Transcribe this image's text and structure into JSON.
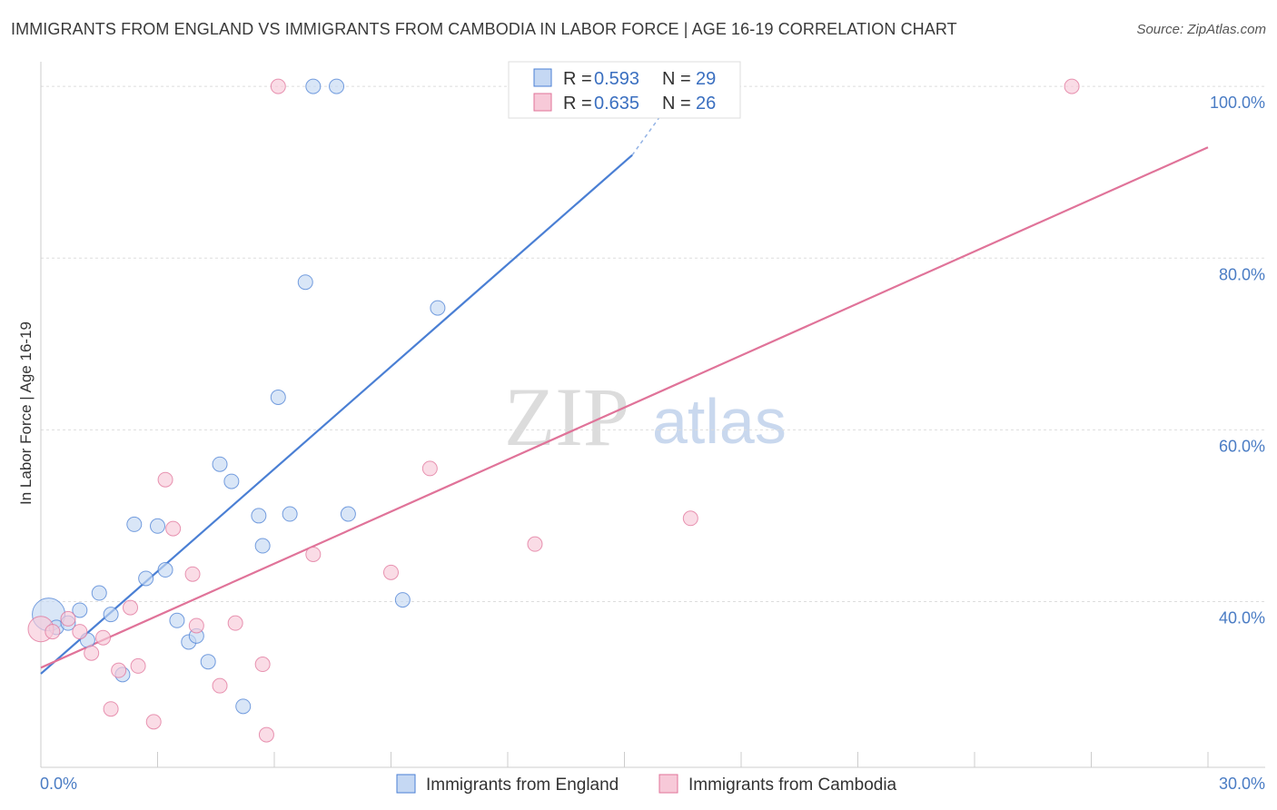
{
  "header": {
    "title": "IMMIGRANTS FROM ENGLAND VS IMMIGRANTS FROM CAMBODIA IN LABOR FORCE | AGE 16-19 CORRELATION CHART",
    "source": "Source: ZipAtlas.com"
  },
  "watermark": {
    "part1": "ZIP",
    "part2": "atlas"
  },
  "colors": {
    "england": "#4a7fd4",
    "england_fill": "#c5d8f3",
    "cambodia": "#e07399",
    "cambodia_fill": "#f7c9d8",
    "tick_text": "#4a7cc4",
    "grid": "#dddddd"
  },
  "chart_data": {
    "type": "scatter",
    "title": "IMMIGRANTS FROM ENGLAND VS IMMIGRANTS FROM CAMBODIA IN LABOR FORCE | AGE 16-19 CORRELATION CHART",
    "xlabel": "",
    "ylabel": "In Labor Force | Age 16-19",
    "xlim": [
      0,
      30
    ],
    "ylim": [
      20.7,
      101.6
    ],
    "x_tick_labels": [
      "0.0%",
      "30.0%"
    ],
    "y_ticks": [
      40,
      60,
      80,
      100
    ],
    "y_tick_labels": [
      "40.0%",
      "60.0%",
      "80.0%",
      "100.0%"
    ],
    "legend": {
      "position": "top-center",
      "entries": [
        {
          "r_label": "R =",
          "r_value": "0.593",
          "n_label": "N =",
          "n_value": "29"
        },
        {
          "r_label": "R =",
          "r_value": "0.635",
          "n_label": "N =",
          "n_value": "26"
        }
      ]
    },
    "series": [
      {
        "name": "Immigrants from England",
        "color": "#4a7fd4",
        "points": [
          [
            0.2,
            38.5
          ],
          [
            0.4,
            37.0
          ],
          [
            0.7,
            37.5
          ],
          [
            1.0,
            39.0
          ],
          [
            1.2,
            35.5
          ],
          [
            1.5,
            41.0
          ],
          [
            1.8,
            38.5
          ],
          [
            2.1,
            31.5
          ],
          [
            2.4,
            49.0
          ],
          [
            2.7,
            42.7
          ],
          [
            3.0,
            48.8
          ],
          [
            3.2,
            43.7
          ],
          [
            3.5,
            37.8
          ],
          [
            3.8,
            35.3
          ],
          [
            4.0,
            36.0
          ],
          [
            4.3,
            33.0
          ],
          [
            4.6,
            56.0
          ],
          [
            4.9,
            54.0
          ],
          [
            5.2,
            27.8
          ],
          [
            5.6,
            50.0
          ],
          [
            5.7,
            46.5
          ],
          [
            6.1,
            63.8
          ],
          [
            6.4,
            50.2
          ],
          [
            6.8,
            77.2
          ],
          [
            7.0,
            100.0
          ],
          [
            7.6,
            100.0
          ],
          [
            7.9,
            50.2
          ],
          [
            9.3,
            40.2
          ],
          [
            10.2,
            74.2
          ]
        ],
        "trend": {
          "x": [
            0.0,
            15.2
          ],
          "y": [
            31.6,
            92.0
          ],
          "dashed_to": [
            15.9,
            96.4
          ]
        }
      },
      {
        "name": "Immigrants from Cambodia",
        "color": "#e07399",
        "points": [
          [
            0.0,
            36.8
          ],
          [
            0.3,
            36.5
          ],
          [
            0.7,
            38.0
          ],
          [
            1.0,
            36.5
          ],
          [
            1.3,
            34.0
          ],
          [
            1.6,
            35.8
          ],
          [
            1.8,
            27.5
          ],
          [
            2.0,
            32.0
          ],
          [
            2.3,
            39.3
          ],
          [
            2.5,
            32.5
          ],
          [
            2.9,
            26.0
          ],
          [
            3.2,
            54.2
          ],
          [
            3.4,
            48.5
          ],
          [
            3.9,
            43.2
          ],
          [
            4.0,
            37.2
          ],
          [
            4.6,
            30.2
          ],
          [
            5.0,
            37.5
          ],
          [
            5.7,
            32.7
          ],
          [
            5.8,
            24.5
          ],
          [
            6.1,
            100.0
          ],
          [
            7.0,
            45.5
          ],
          [
            9.0,
            43.4
          ],
          [
            10.0,
            55.5
          ],
          [
            12.7,
            46.7
          ],
          [
            16.7,
            49.7
          ],
          [
            26.5,
            100.0
          ]
        ],
        "trend": {
          "x": [
            0.0,
            30.0
          ],
          "y": [
            32.3,
            92.9
          ]
        }
      }
    ]
  }
}
